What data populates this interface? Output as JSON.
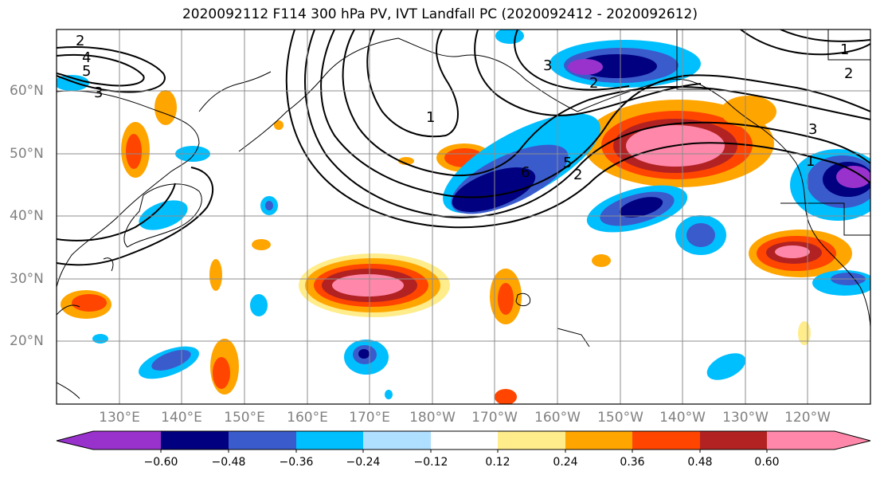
{
  "title": "2020092112 F114 300 hPa PV, IVT Landfall PC (2020092412 - 2020092612)",
  "lat_labels": [
    "60°N",
    "50°N",
    "40°N",
    "30°N",
    "20°N"
  ],
  "lon_labels": [
    "130°E",
    "140°E",
    "150°E",
    "160°E",
    "170°E",
    "180°W",
    "170°W",
    "160°W",
    "150°W",
    "140°W",
    "130°W",
    "120°W"
  ],
  "contour_labels": [
    "2",
    "4",
    "5",
    "3",
    "1",
    "3",
    "2",
    "6",
    "5",
    "2",
    "1",
    "1",
    "2",
    "3"
  ],
  "colorbar": {
    "ticks": [
      "−0.60",
      "−0.48",
      "−0.36",
      "−0.24",
      "−0.12",
      "0.12",
      "0.24",
      "0.36",
      "0.48",
      "0.60"
    ],
    "colors": [
      "#9932cc",
      "#000080",
      "#3a5bcc",
      "#00bfff",
      "#b0e0ff",
      "#ffffff",
      "#ffec8b",
      "#ffa500",
      "#ff4500",
      "#b22222",
      "#ff88aa"
    ]
  }
}
